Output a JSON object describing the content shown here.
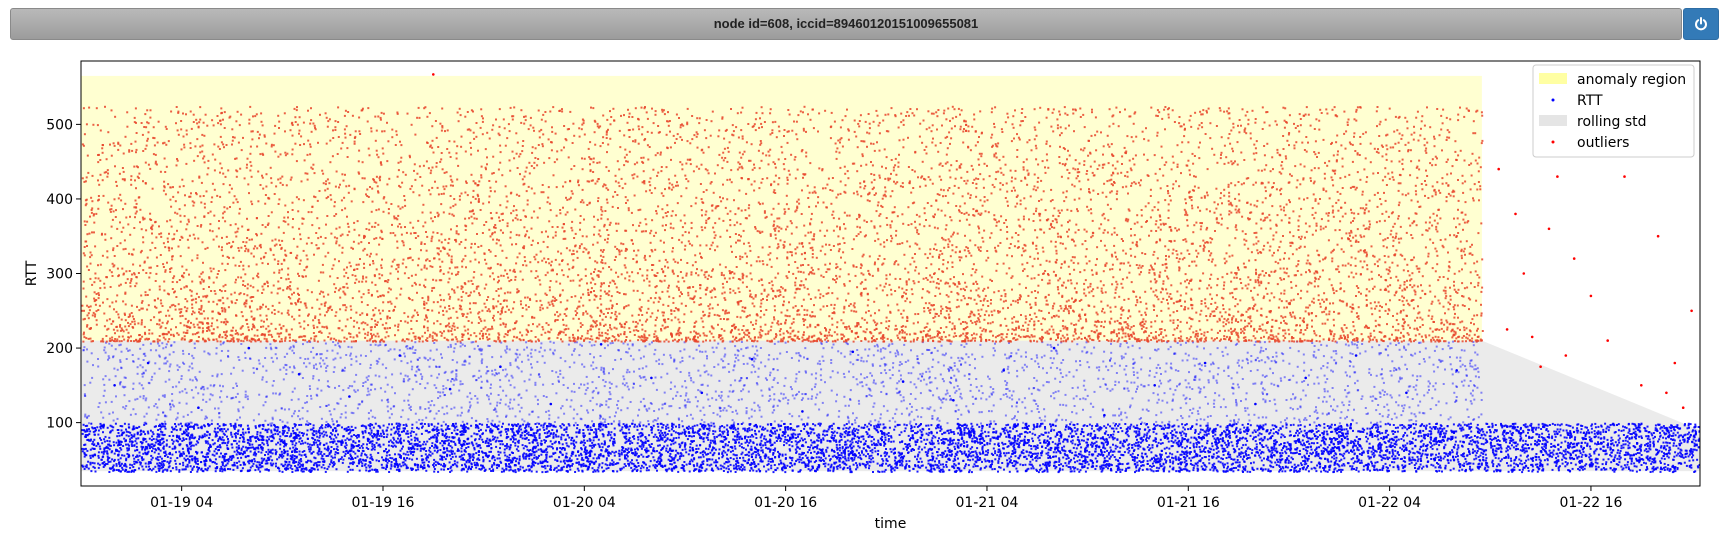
{
  "header": {
    "title": "node id=608, iccid=89460120151009655081",
    "power_icon": "power-icon"
  },
  "colors": {
    "anomaly_region": "#ffff66",
    "rtt": "#0000ff",
    "rolling_std": "#cccccc",
    "outliers": "#ff0000",
    "power_button": "#337ab7"
  },
  "chart_data": {
    "type": "scatter",
    "xlabel": "time",
    "ylabel": "RTT",
    "xlim": [
      "2020-01-18 22:00",
      "2020-01-22 22:30"
    ],
    "ylim": [
      15,
      585
    ],
    "x_ticks": [
      {
        "value": "2020-01-19 04:00",
        "label": "01-19 04"
      },
      {
        "value": "2020-01-19 16:00",
        "label": "01-19 16"
      },
      {
        "value": "2020-01-20 04:00",
        "label": "01-20 04"
      },
      {
        "value": "2020-01-20 16:00",
        "label": "01-20 16"
      },
      {
        "value": "2020-01-21 04:00",
        "label": "01-21 04"
      },
      {
        "value": "2020-01-21 16:00",
        "label": "01-21 16"
      },
      {
        "value": "2020-01-22 04:00",
        "label": "01-22 04"
      },
      {
        "value": "2020-01-22 16:00",
        "label": "01-22 16"
      }
    ],
    "y_ticks": [
      100,
      200,
      300,
      400,
      500
    ],
    "grid": false,
    "legend_position": "top-right",
    "legend": [
      {
        "label": "anomaly region",
        "style": "patch",
        "color": "#ffff66"
      },
      {
        "label": "RTT",
        "style": "dot",
        "color": "#0000ff"
      },
      {
        "label": "rolling std",
        "style": "patch",
        "color": "#cccccc"
      },
      {
        "label": "outliers",
        "style": "dot",
        "color": "#ff0000"
      }
    ],
    "anomaly_region": {
      "x_start": "2020-01-18 22:00",
      "x_end": "2020-01-22 09:30",
      "y_min": 210,
      "y_max": 565
    },
    "rolling_std_band": [
      {
        "x": "2020-01-18 22:00",
        "low": 35,
        "high": 210
      },
      {
        "x": "2020-01-22 09:30",
        "low": 35,
        "high": 210
      },
      {
        "x": "2020-01-22 16:00",
        "low": 35,
        "high": 150
      },
      {
        "x": "2020-01-22 22:30",
        "low": 35,
        "high": 90
      }
    ],
    "series": [
      {
        "name": "RTT",
        "note_dense_band": {
          "y_range": [
            35,
            100
          ],
          "x_range": [
            "2020-01-18 22:00",
            "2020-01-22 22:30"
          ]
        },
        "points": [
          {
            "x": "2020-01-19 00:00",
            "y": 150
          },
          {
            "x": "2020-01-19 02:00",
            "y": 180
          },
          {
            "x": "2020-01-19 05:00",
            "y": 120
          },
          {
            "x": "2020-01-19 08:00",
            "y": 200
          },
          {
            "x": "2020-01-19 11:00",
            "y": 165
          },
          {
            "x": "2020-01-19 14:00",
            "y": 135
          },
          {
            "x": "2020-01-19 17:00",
            "y": 190
          },
          {
            "x": "2020-01-19 20:00",
            "y": 145
          },
          {
            "x": "2020-01-19 23:00",
            "y": 175
          },
          {
            "x": "2020-01-20 02:00",
            "y": 125
          },
          {
            "x": "2020-01-20 05:00",
            "y": 205
          },
          {
            "x": "2020-01-20 08:00",
            "y": 160
          },
          {
            "x": "2020-01-20 11:00",
            "y": 140
          },
          {
            "x": "2020-01-20 14:00",
            "y": 185
          },
          {
            "x": "2020-01-20 17:00",
            "y": 115
          },
          {
            "x": "2020-01-20 20:00",
            "y": 195
          },
          {
            "x": "2020-01-20 23:00",
            "y": 155
          },
          {
            "x": "2020-01-21 02:00",
            "y": 130
          },
          {
            "x": "2020-01-21 05:00",
            "y": 170
          },
          {
            "x": "2020-01-21 08:00",
            "y": 200
          },
          {
            "x": "2020-01-21 11:00",
            "y": 110
          },
          {
            "x": "2020-01-21 14:00",
            "y": 150
          },
          {
            "x": "2020-01-21 17:00",
            "y": 180
          },
          {
            "x": "2020-01-21 20:00",
            "y": 125
          },
          {
            "x": "2020-01-21 23:00",
            "y": 160
          },
          {
            "x": "2020-01-22 02:00",
            "y": 190
          },
          {
            "x": "2020-01-22 05:00",
            "y": 140
          },
          {
            "x": "2020-01-22 08:00",
            "y": 170
          },
          {
            "x": "2020-01-22 11:00",
            "y": 95
          },
          {
            "x": "2020-01-22 14:00",
            "y": 85
          },
          {
            "x": "2020-01-22 17:00",
            "y": 70
          },
          {
            "x": "2020-01-22 20:00",
            "y": 60
          }
        ]
      },
      {
        "name": "outliers",
        "note_dense_band": {
          "y_range": [
            210,
            525
          ],
          "x_range": [
            "2020-01-18 22:00",
            "2020-01-22 09:30"
          ]
        },
        "points": [
          {
            "x": "2020-01-19 19:00",
            "y": 567
          },
          {
            "x": "2020-01-22 10:30",
            "y": 440
          },
          {
            "x": "2020-01-22 11:00",
            "y": 225
          },
          {
            "x": "2020-01-22 11:30",
            "y": 380
          },
          {
            "x": "2020-01-22 12:00",
            "y": 300
          },
          {
            "x": "2020-01-22 12:30",
            "y": 215
          },
          {
            "x": "2020-01-22 13:00",
            "y": 175
          },
          {
            "x": "2020-01-22 13:30",
            "y": 360
          },
          {
            "x": "2020-01-22 14:00",
            "y": 430
          },
          {
            "x": "2020-01-22 14:30",
            "y": 190
          },
          {
            "x": "2020-01-22 15:00",
            "y": 320
          },
          {
            "x": "2020-01-22 16:00",
            "y": 270
          },
          {
            "x": "2020-01-22 17:00",
            "y": 210
          },
          {
            "x": "2020-01-22 18:00",
            "y": 430
          },
          {
            "x": "2020-01-22 19:00",
            "y": 150
          },
          {
            "x": "2020-01-22 20:00",
            "y": 350
          },
          {
            "x": "2020-01-22 20:30",
            "y": 140
          },
          {
            "x": "2020-01-22 21:00",
            "y": 180
          },
          {
            "x": "2020-01-22 21:30",
            "y": 120
          },
          {
            "x": "2020-01-22 22:00",
            "y": 250
          }
        ]
      }
    ]
  }
}
